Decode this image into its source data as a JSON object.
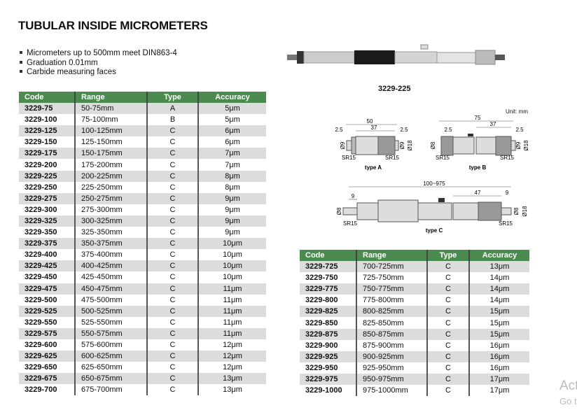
{
  "title": "TUBULAR INSIDE MICROMETERS",
  "features": [
    "Micrometers up to 500mm meet DIN863-4",
    "Graduation 0.01mm",
    "Carbide measuring faces"
  ],
  "photo_caption": "3229-225",
  "diagram": {
    "unit": "Unit: mm",
    "type_a": "type A",
    "type_b": "type B",
    "type_c": "type C",
    "a_dims": [
      "50",
      "37",
      "2.5",
      "2.5",
      "Ø9",
      "Ø9",
      "Ø18",
      "SR15",
      "SR15"
    ],
    "b_dims": [
      "75",
      "37",
      "2.5",
      "2.5",
      "Ø8",
      "Ø9",
      "Ø18",
      "SR15",
      "SR15"
    ],
    "c_dims": [
      "100~975",
      "9",
      "47",
      "9",
      "Ø8",
      "Ø8",
      "Ø18",
      "SR15",
      "SR15"
    ]
  },
  "table_headers": [
    "Code",
    "Range",
    "Type",
    "Accuracy"
  ],
  "left_rows": [
    [
      "3229-75",
      "50-75mm",
      "A",
      "5μm"
    ],
    [
      "3229-100",
      "75-100mm",
      "B",
      "5μm"
    ],
    [
      "3229-125",
      "100-125mm",
      "C",
      "6μm"
    ],
    [
      "3229-150",
      "125-150mm",
      "C",
      "6μm"
    ],
    [
      "3229-175",
      "150-175mm",
      "C",
      "7μm"
    ],
    [
      "3229-200",
      "175-200mm",
      "C",
      "7μm"
    ],
    [
      "3229-225",
      "200-225mm",
      "C",
      "8μm"
    ],
    [
      "3229-250",
      "225-250mm",
      "C",
      "8μm"
    ],
    [
      "3229-275",
      "250-275mm",
      "C",
      "9μm"
    ],
    [
      "3229-300",
      "275-300mm",
      "C",
      "9μm"
    ],
    [
      "3229-325",
      "300-325mm",
      "C",
      "9μm"
    ],
    [
      "3229-350",
      "325-350mm",
      "C",
      "9μm"
    ],
    [
      "3229-375",
      "350-375mm",
      "C",
      "10μm"
    ],
    [
      "3229-400",
      "375-400mm",
      "C",
      "10μm"
    ],
    [
      "3229-425",
      "400-425mm",
      "C",
      "10μm"
    ],
    [
      "3229-450",
      "425-450mm",
      "C",
      "10μm"
    ],
    [
      "3229-475",
      "450-475mm",
      "C",
      "11μm"
    ],
    [
      "3229-500",
      "475-500mm",
      "C",
      "11μm"
    ],
    [
      "3229-525",
      "500-525mm",
      "C",
      "11μm"
    ],
    [
      "3229-550",
      "525-550mm",
      "C",
      "11μm"
    ],
    [
      "3229-575",
      "550-575mm",
      "C",
      "11μm"
    ],
    [
      "3229-600",
      "575-600mm",
      "C",
      "12μm"
    ],
    [
      "3229-625",
      "600-625mm",
      "C",
      "12μm"
    ],
    [
      "3229-650",
      "625-650mm",
      "C",
      "12μm"
    ],
    [
      "3229-675",
      "650-675mm",
      "C",
      "13μm"
    ],
    [
      "3229-700",
      "675-700mm",
      "C",
      "13μm"
    ]
  ],
  "right_rows": [
    [
      "3229-725",
      "700-725mm",
      "C",
      "13μm"
    ],
    [
      "3229-750",
      "725-750mm",
      "C",
      "14μm"
    ],
    [
      "3229-775",
      "750-775mm",
      "C",
      "14μm"
    ],
    [
      "3229-800",
      "775-800mm",
      "C",
      "14μm"
    ],
    [
      "3229-825",
      "800-825mm",
      "C",
      "15μm"
    ],
    [
      "3229-850",
      "825-850mm",
      "C",
      "15μm"
    ],
    [
      "3229-875",
      "850-875mm",
      "C",
      "15μm"
    ],
    [
      "3229-900",
      "875-900mm",
      "C",
      "16μm"
    ],
    [
      "3229-925",
      "900-925mm",
      "C",
      "16μm"
    ],
    [
      "3229-950",
      "925-950mm",
      "C",
      "16μm"
    ],
    [
      "3229-975",
      "950-975mm",
      "C",
      "17μm"
    ],
    [
      "3229-1000",
      "975-1000mm",
      "C",
      "17μm"
    ]
  ],
  "watermark": {
    "line1": "Act",
    "line2": "Go t"
  },
  "colors": {
    "header_green": "#4b8b50",
    "row_alt": "#dcdcdc"
  }
}
